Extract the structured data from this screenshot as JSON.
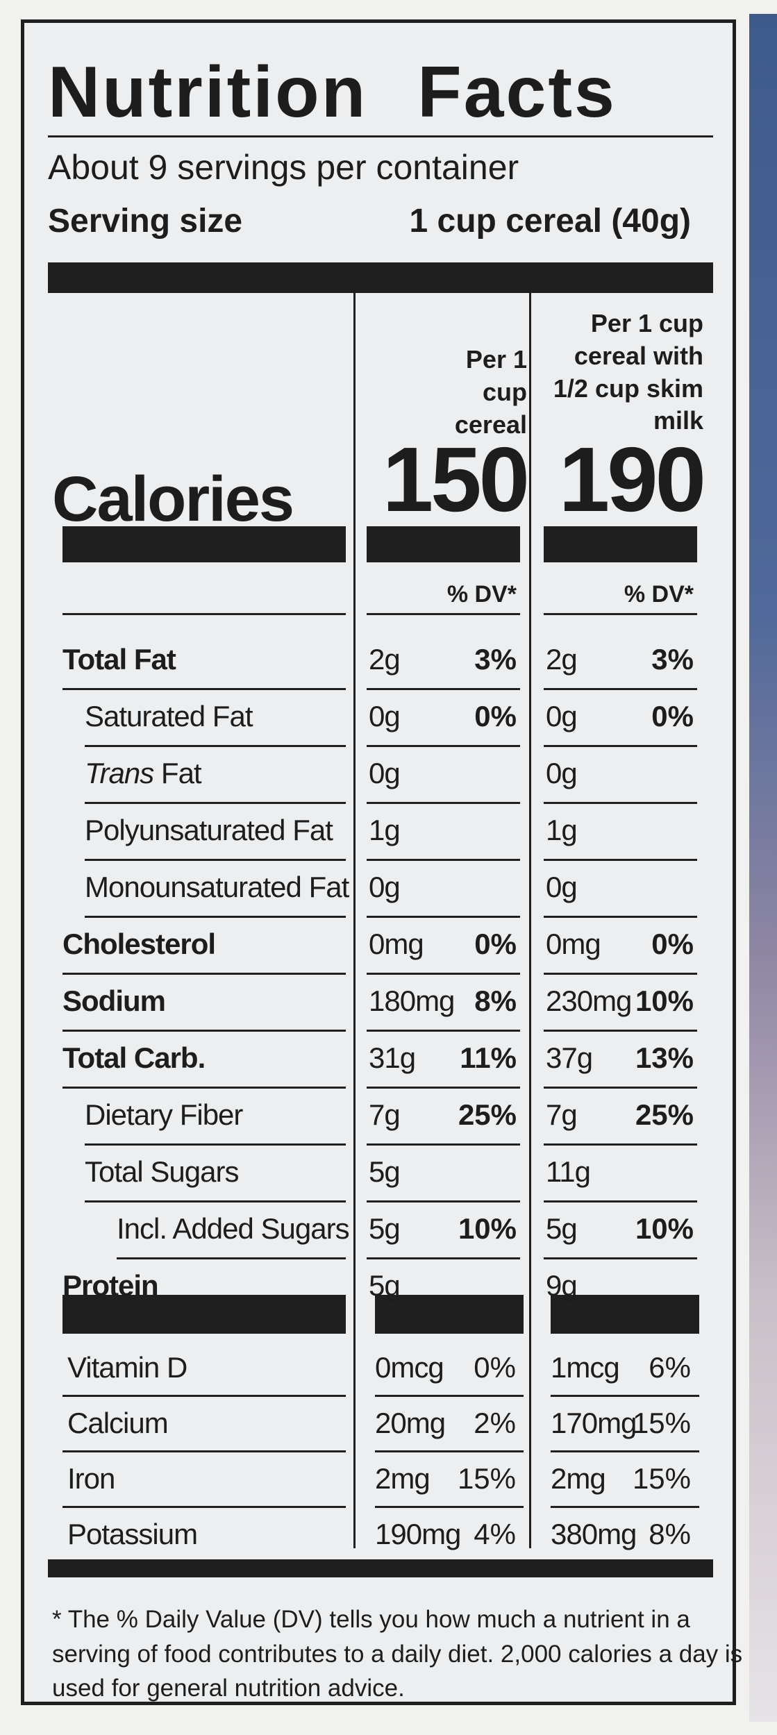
{
  "title": "Nutrition Facts",
  "servings_per_container": "About 9 servings per container",
  "serving_size": {
    "label": "Serving size",
    "value": "1 cup cereal (40g)"
  },
  "columns": [
    {
      "header": "Per 1 cup cereal",
      "calories": "150",
      "dv_header": "% DV*"
    },
    {
      "header": "Per 1 cup cereal with 1/2 cup skim milk",
      "calories": "190",
      "dv_header": "% DV*"
    }
  ],
  "calories_label": "Calories",
  "nutrients": [
    {
      "name": "Total Fat",
      "style": "bold",
      "col1": {
        "amount": "2g",
        "dv": "3%"
      },
      "col2": {
        "amount": "2g",
        "dv": "3%"
      }
    },
    {
      "name": "Saturated Fat",
      "style": "indent1",
      "col1": {
        "amount": "0g",
        "dv": "0%"
      },
      "col2": {
        "amount": "0g",
        "dv": "0%"
      }
    },
    {
      "name_italic": "Trans",
      "name_rest": " Fat",
      "style": "indent1",
      "col1": {
        "amount": "0g",
        "dv": ""
      },
      "col2": {
        "amount": "0g",
        "dv": ""
      }
    },
    {
      "name": "Polyunsaturated Fat",
      "style": "indent1",
      "col1": {
        "amount": "1g",
        "dv": ""
      },
      "col2": {
        "amount": "1g",
        "dv": ""
      }
    },
    {
      "name": "Monounsaturated Fat",
      "style": "indent1",
      "col1": {
        "amount": "0g",
        "dv": ""
      },
      "col2": {
        "amount": "0g",
        "dv": ""
      }
    },
    {
      "name": "Cholesterol",
      "style": "bold",
      "col1": {
        "amount": "0mg",
        "dv": "0%"
      },
      "col2": {
        "amount": "0mg",
        "dv": "0%"
      }
    },
    {
      "name": "Sodium",
      "style": "bold",
      "col1": {
        "amount": "180mg",
        "dv": "8%"
      },
      "col2": {
        "amount": "230mg",
        "dv": "10%"
      }
    },
    {
      "name": "Total Carb.",
      "style": "bold",
      "col1": {
        "amount": "31g",
        "dv": "11%"
      },
      "col2": {
        "amount": "37g",
        "dv": "13%"
      }
    },
    {
      "name": "Dietary Fiber",
      "style": "indent1",
      "col1": {
        "amount": "7g",
        "dv": "25%"
      },
      "col2": {
        "amount": "7g",
        "dv": "25%"
      }
    },
    {
      "name": "Total Sugars",
      "style": "indent1",
      "col1": {
        "amount": "5g",
        "dv": ""
      },
      "col2": {
        "amount": "11g",
        "dv": ""
      }
    },
    {
      "name": "Incl. Added Sugars",
      "style": "indent2",
      "col1": {
        "amount": "5g",
        "dv": "10%"
      },
      "col2": {
        "amount": "5g",
        "dv": "10%"
      }
    },
    {
      "name": "Protein",
      "style": "bold",
      "col1": {
        "amount": "5g",
        "dv": ""
      },
      "col2": {
        "amount": "9g",
        "dv": ""
      }
    }
  ],
  "vitamins": [
    {
      "name": "Vitamin D",
      "col1": {
        "amount": "0mcg",
        "dv": "0%"
      },
      "col2": {
        "amount": "1mcg",
        "dv": "6%"
      }
    },
    {
      "name": "Calcium",
      "col1": {
        "amount": "20mg",
        "dv": "2%"
      },
      "col2": {
        "amount": "170mg",
        "dv": "15%"
      }
    },
    {
      "name": "Iron",
      "col1": {
        "amount": "2mg",
        "dv": "15%"
      },
      "col2": {
        "amount": "2mg",
        "dv": "15%"
      }
    },
    {
      "name": "Potassium",
      "col1": {
        "amount": "190mg",
        "dv": "4%"
      },
      "col2": {
        "amount": "380mg",
        "dv": "8%"
      }
    }
  ],
  "footnote": "* The % Daily Value (DV) tells you how much a nutrient in a serving of food contributes to a daily diet. 2,000 calories a day is used for general nutrition advice."
}
